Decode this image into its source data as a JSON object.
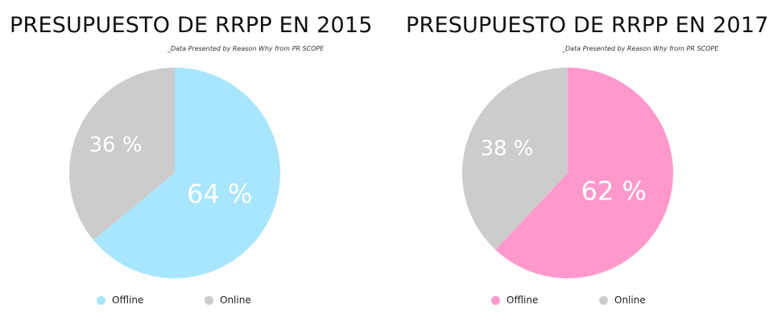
{
  "chart_data": [
    {
      "type": "pie",
      "title": "PRESUPUESTO DE RRPP EN 2015",
      "subtitle": "_Data Presented by Reason Why from PR SCOPE",
      "slices": [
        {
          "name": "Offline",
          "value": 64,
          "label": "64 %",
          "color": "#a8e6fd"
        },
        {
          "name": "Online",
          "value": 36,
          "label": "36 %",
          "color": "#cccccc"
        }
      ],
      "legend": "bottom"
    },
    {
      "type": "pie",
      "title": "PRESUPUESTO DE RRPP EN 2017",
      "subtitle": "_Data Presented by Reason Why from PR SCOPE",
      "slices": [
        {
          "name": "Offline",
          "value": 62,
          "label": "62 %",
          "color": "#ff99cc"
        },
        {
          "name": "Online",
          "value": 38,
          "label": "38 %",
          "color": "#cccccc"
        }
      ],
      "legend": "bottom"
    }
  ]
}
